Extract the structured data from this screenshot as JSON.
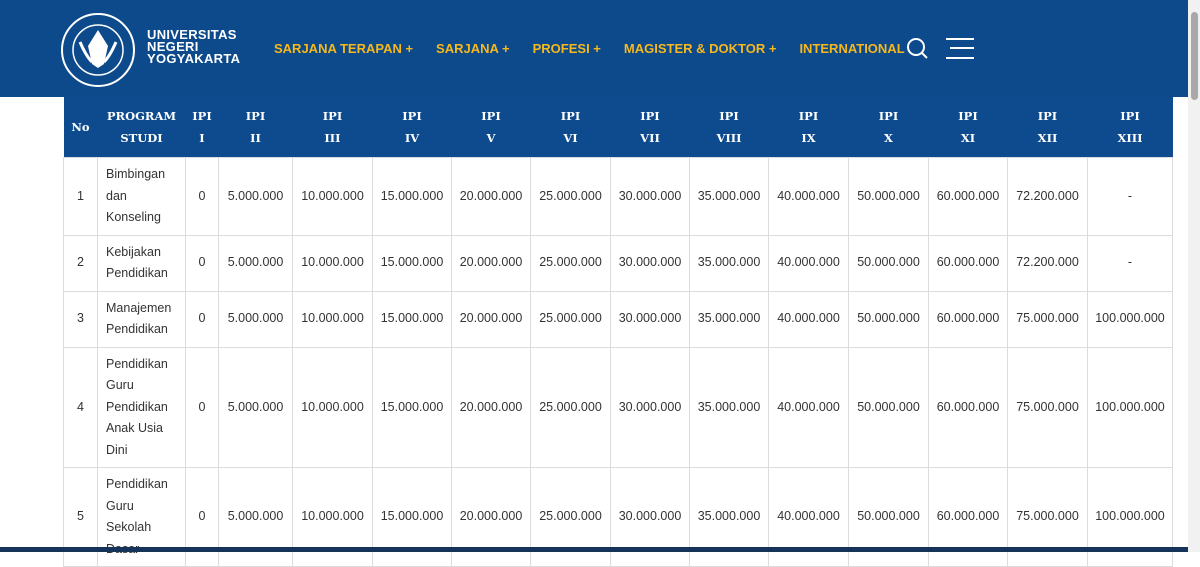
{
  "header": {
    "brand": [
      "UNIVERSITAS",
      "NEGERI",
      "YOGYAKARTA"
    ],
    "nav": [
      "SARJANA TERAPAN +",
      "SARJANA +",
      "PROFESI +",
      "MAGISTER & DOKTOR +",
      "INTERNATIONAL"
    ]
  },
  "table": {
    "columns": [
      "No",
      "PROGRAM STUDI",
      "IPI I",
      "IPI II",
      "IPI III",
      "IPI IV",
      "IPI V",
      "IPI VI",
      "IPI VII",
      "IPI VIII",
      "IPI IX",
      "IPI X",
      "IPI XI",
      "IPI XII",
      "IPI XIII"
    ],
    "rows": [
      [
        "1",
        "Bimbingan dan Konseling",
        "0",
        "5.000.000",
        "10.000.000",
        "15.000.000",
        "20.000.000",
        "25.000.000",
        "30.000.000",
        "35.000.000",
        "40.000.000",
        "50.000.000",
        "60.000.000",
        "72.200.000",
        "-"
      ],
      [
        "2",
        "Kebijakan Pendidikan",
        "0",
        "5.000.000",
        "10.000.000",
        "15.000.000",
        "20.000.000",
        "25.000.000",
        "30.000.000",
        "35.000.000",
        "40.000.000",
        "50.000.000",
        "60.000.000",
        "72.200.000",
        "-"
      ],
      [
        "3",
        "Manajemen Pendidikan",
        "0",
        "5.000.000",
        "10.000.000",
        "15.000.000",
        "20.000.000",
        "25.000.000",
        "30.000.000",
        "35.000.000",
        "40.000.000",
        "50.000.000",
        "60.000.000",
        "75.000.000",
        "100.000.000"
      ],
      [
        "4",
        "Pendidikan Guru Pendidikan Anak Usia Dini",
        "0",
        "5.000.000",
        "10.000.000",
        "15.000.000",
        "20.000.000",
        "25.000.000",
        "30.000.000",
        "35.000.000",
        "40.000.000",
        "50.000.000",
        "60.000.000",
        "75.000.000",
        "100.000.000"
      ],
      [
        "5",
        "Pendidikan Guru Sekolah Dasar",
        "0",
        "5.000.000",
        "10.000.000",
        "15.000.000",
        "20.000.000",
        "25.000.000",
        "30.000.000",
        "35.000.000",
        "40.000.000",
        "50.000.000",
        "60.000.000",
        "75.000.000",
        "100.000.000"
      ]
    ]
  }
}
